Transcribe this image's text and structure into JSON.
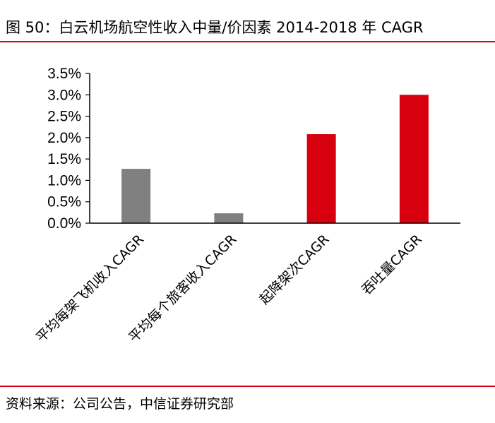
{
  "header": {
    "title": "图 50：白云机场航空性收入中量/价因素 2014-2018 年 CAGR"
  },
  "footer": {
    "source": "资料来源：公司公告，中信证券研究部"
  },
  "chart_data": {
    "type": "bar",
    "categories": [
      "平均每架飞机收入CAGR",
      "平均每个旅客收入CAGR",
      "起降架次CAGR",
      "吞吐量CAGR"
    ],
    "values": [
      1.27,
      0.23,
      2.08,
      3.0
    ],
    "bar_colors": [
      "#808080",
      "#808080",
      "#d6000f",
      "#d6000f"
    ],
    "ylim": [
      0,
      3.5
    ],
    "yticks": [
      "0.0%",
      "0.5%",
      "1.0%",
      "1.5%",
      "2.0%",
      "2.5%",
      "3.0%",
      "3.5%"
    ],
    "title": "",
    "xlabel": "",
    "ylabel": "",
    "grid": false,
    "legend": "none"
  },
  "colors": {
    "accent": "#d6000f",
    "gray_bar": "#808080"
  }
}
